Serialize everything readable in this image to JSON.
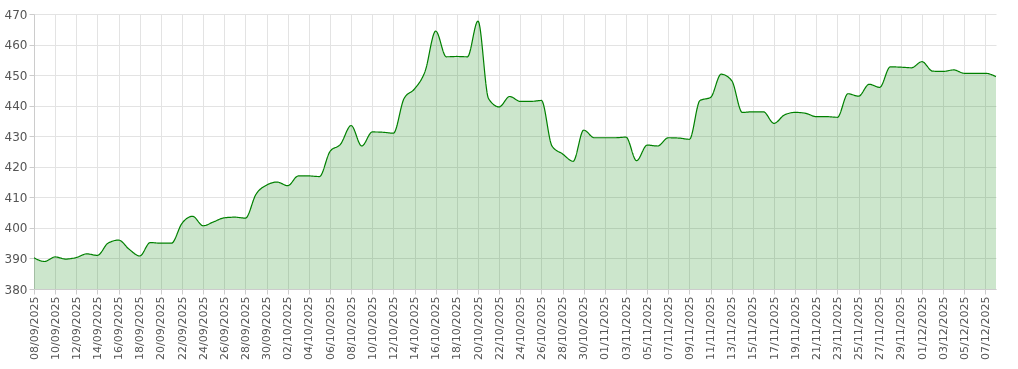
{
  "chart_data": {
    "type": "area",
    "categories": [
      "08/09/2025",
      null,
      "10/09/2025",
      null,
      "12/09/2025",
      null,
      "14/09/2025",
      null,
      "16/09/2025",
      null,
      "18/09/2025",
      null,
      "20/09/2025",
      null,
      "22/09/2025",
      null,
      "24/09/2025",
      null,
      "26/09/2025",
      null,
      "28/09/2025",
      null,
      "30/09/2025",
      null,
      "02/10/2025",
      null,
      "04/10/2025",
      null,
      "06/10/2025",
      null,
      "08/10/2025",
      null,
      "10/10/2025",
      null,
      "12/10/2025",
      null,
      "14/10/2025",
      null,
      "16/10/2025",
      null,
      "18/10/2025",
      null,
      "20/10/2025",
      null,
      "22/10/2025",
      null,
      "24/10/2025",
      null,
      "26/10/2025",
      null,
      "28/10/2025",
      null,
      "30/10/2025",
      null,
      "01/11/2025",
      null,
      "03/11/2025",
      null,
      "05/11/2025",
      null,
      "07/11/2025",
      null,
      "09/11/2025",
      null,
      "11/11/2025",
      null,
      "13/11/2025",
      null,
      "15/11/2025",
      null,
      "17/11/2025",
      null,
      "19/11/2025",
      null,
      "21/11/2025",
      null,
      "23/11/2025",
      null,
      "25/11/2025",
      null,
      "27/11/2025",
      null,
      "29/11/2025",
      null,
      "01/12/2025",
      null,
      "03/12/2025",
      null,
      "05/12/2025",
      null,
      "07/12/2025",
      null
    ],
    "ylim": [
      380,
      470
    ],
    "yticks": [
      380,
      390,
      400,
      410,
      420,
      430,
      440,
      450,
      460,
      470
    ],
    "grid": true,
    "line_style": "solid",
    "series": [
      {
        "color": "#008000",
        "values": [
          390.2,
          389.0,
          390.5,
          389.8,
          390.3,
          391.5,
          391.0,
          395.0,
          396.0,
          393.0,
          390.8,
          395.2,
          395.0,
          395.0,
          401.5,
          403.8,
          400.7,
          402.0,
          403.3,
          403.5,
          403.2,
          411.0,
          414.0,
          415.0,
          413.8,
          417.0,
          417.0,
          416.8,
          425.0,
          427.4,
          433.5,
          426.8,
          431.4,
          431.3,
          431.0,
          442.3,
          445.5,
          451.3,
          464.4,
          456.0,
          456.1,
          456.0,
          467.7,
          442.3,
          439.6,
          443.0,
          441.4,
          441.4,
          441.7,
          426.8,
          424.2,
          421.8,
          432.0,
          429.5,
          429.5,
          429.5,
          429.7,
          422.0,
          427.1,
          426.8,
          429.5,
          429.4,
          429.0,
          441.7,
          442.7,
          450.3,
          448.2,
          437.8,
          438.0,
          438.0,
          434.2,
          437.0,
          437.8,
          437.5,
          436.4,
          436.4,
          436.2,
          443.9,
          443.1,
          447.0,
          446.0,
          452.7,
          452.6,
          452.4,
          454.4,
          451.3,
          451.2,
          451.7,
          450.6,
          450.6,
          450.6,
          449.5
        ]
      }
    ]
  }
}
